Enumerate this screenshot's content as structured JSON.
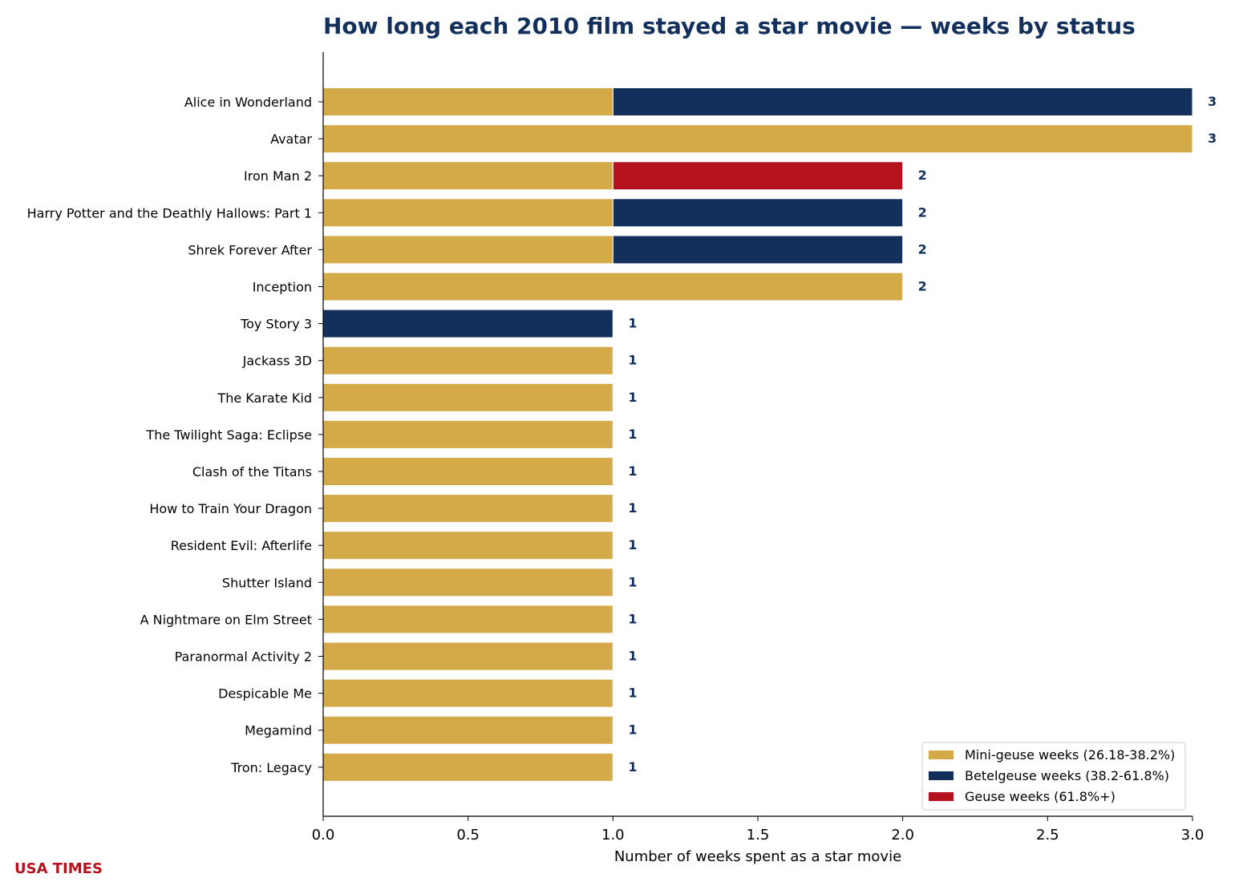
{
  "brand": "USA TIMES",
  "colors": {
    "title": "#13305c",
    "brand": "#b5121e",
    "mini_geuse": "#d4a947",
    "betelgeuse": "#13305c",
    "geuse": "#b5121e",
    "data_label": "#13305c"
  },
  "chart_data": {
    "type": "bar",
    "orientation": "horizontal",
    "stacked": true,
    "title": "How long each 2010 film stayed a star movie — weeks by status",
    "xlabel": "Number of weeks spent as a star movie",
    "ylabel": "",
    "xlim": [
      0,
      3.0
    ],
    "xticks": [
      0.0,
      0.5,
      1.0,
      1.5,
      2.0,
      2.5,
      3.0
    ],
    "xtick_labels": [
      "0.0",
      "0.5",
      "1.0",
      "1.5",
      "2.0",
      "2.5",
      "3.0"
    ],
    "grid": false,
    "legend_position": "bottom-right",
    "categories": [
      "Alice in Wonderland",
      "Avatar",
      "Iron Man 2",
      "Harry Potter and the Deathly Hallows: Part 1",
      "Shrek Forever After",
      "Inception",
      "Toy Story 3",
      "Jackass 3D",
      "The Karate Kid",
      "The Twilight Saga: Eclipse",
      "Clash of the Titans",
      "How to Train Your Dragon",
      "Resident Evil: Afterlife",
      "Shutter Island",
      "A Nightmare on Elm Street",
      "Paranormal Activity 2",
      "Despicable Me",
      "Megamind",
      "Tron: Legacy"
    ],
    "series": [
      {
        "name": "Mini-geuse weeks (26.18-38.2%)",
        "color": "#d4a947",
        "values": [
          1,
          3,
          1,
          1,
          1,
          2,
          0,
          1,
          1,
          1,
          1,
          1,
          1,
          1,
          1,
          1,
          1,
          1,
          1
        ]
      },
      {
        "name": "Betelgeuse weeks (38.2-61.8%)",
        "color": "#13305c",
        "values": [
          2,
          0,
          0,
          1,
          1,
          0,
          1,
          0,
          0,
          0,
          0,
          0,
          0,
          0,
          0,
          0,
          0,
          0,
          0
        ]
      },
      {
        "name": "Geuse weeks (61.8%+)",
        "color": "#b5121e",
        "values": [
          0,
          0,
          1,
          0,
          0,
          0,
          0,
          0,
          0,
          0,
          0,
          0,
          0,
          0,
          0,
          0,
          0,
          0,
          0
        ]
      }
    ],
    "totals": [
      3,
      3,
      2,
      2,
      2,
      2,
      1,
      1,
      1,
      1,
      1,
      1,
      1,
      1,
      1,
      1,
      1,
      1,
      1
    ]
  }
}
